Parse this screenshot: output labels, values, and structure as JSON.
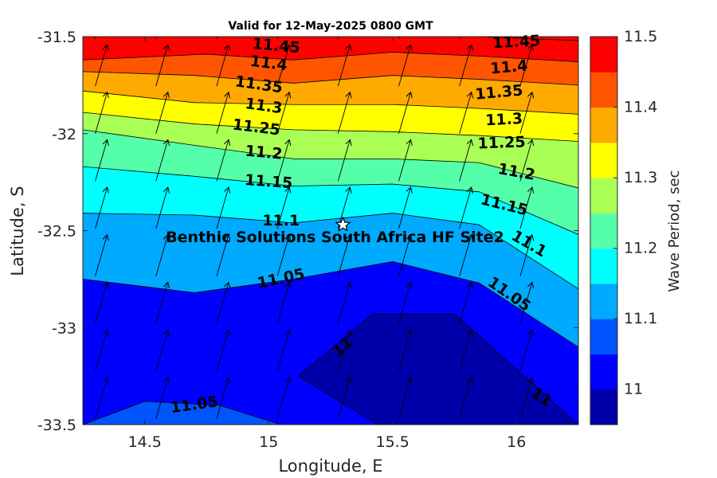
{
  "chart_data": {
    "type": "contourf",
    "title": "Valid for 12-May-2025 0800 GMT",
    "xlabel": "Longitude, E",
    "ylabel": "Latitude, S",
    "xlim": [
      14.25,
      16.25
    ],
    "ylim": [
      -33.5,
      -31.5
    ],
    "xticks": [
      14.5,
      15,
      15.5,
      16
    ],
    "yticks": [
      -31.5,
      -32,
      -32.5,
      -33,
      -33.5
    ],
    "colorbar": {
      "label": "Wave Period, sec",
      "range": [
        10.95,
        11.5
      ],
      "ticks": [
        "11",
        "11.1",
        "11.2",
        "11.3",
        "11.4",
        "11.5"
      ],
      "colors": [
        "#0000aa",
        "#0000ff",
        "#0055ff",
        "#00aaff",
        "#00ffff",
        "#55ffaa",
        "#aaff55",
        "#ffff00",
        "#ffaa00",
        "#ff5500",
        "#ff0000"
      ]
    },
    "contour_levels": [
      11,
      11.05,
      11.1,
      11.15,
      11.2,
      11.25,
      11.3,
      11.35,
      11.4,
      11.45
    ],
    "contour_labels": [
      {
        "text": "11.45",
        "lon": 15.03,
        "lat": -31.55,
        "angle": 5
      },
      {
        "text": "11.45",
        "lon": 16.0,
        "lat": -31.53,
        "angle": -3
      },
      {
        "text": "11.4",
        "lon": 15.0,
        "lat": -31.64,
        "angle": 7
      },
      {
        "text": "11.4",
        "lon": 15.97,
        "lat": -31.66,
        "angle": -5
      },
      {
        "text": "11.35",
        "lon": 14.96,
        "lat": -31.75,
        "angle": 8
      },
      {
        "text": "11.35",
        "lon": 15.93,
        "lat": -31.79,
        "angle": -5
      },
      {
        "text": "11.3",
        "lon": 14.98,
        "lat": -31.86,
        "angle": 8
      },
      {
        "text": "11.3",
        "lon": 15.95,
        "lat": -31.93,
        "angle": -3
      },
      {
        "text": "11.25",
        "lon": 14.95,
        "lat": -31.97,
        "angle": 7
      },
      {
        "text": "11.25",
        "lon": 15.94,
        "lat": -32.05,
        "angle": -2
      },
      {
        "text": "11.2",
        "lon": 14.98,
        "lat": -32.1,
        "angle": 5
      },
      {
        "text": "11.2",
        "lon": 16.0,
        "lat": -32.2,
        "angle": 10
      },
      {
        "text": "11.15",
        "lon": 15.0,
        "lat": -32.25,
        "angle": 4
      },
      {
        "text": "11.15",
        "lon": 15.95,
        "lat": -32.37,
        "angle": 14
      },
      {
        "text": "11.1",
        "lon": 15.05,
        "lat": -32.45,
        "angle": 0
      },
      {
        "text": "11.1",
        "lon": 16.05,
        "lat": -32.57,
        "angle": 30
      },
      {
        "text": "11.05",
        "lon": 15.05,
        "lat": -32.75,
        "angle": -12
      },
      {
        "text": "11.05",
        "lon": 15.97,
        "lat": -32.83,
        "angle": 35
      },
      {
        "text": "11.05",
        "lon": 14.7,
        "lat": -33.4,
        "angle": -8
      },
      {
        "text": "11",
        "lon": 15.3,
        "lat": -33.1,
        "angle": -40
      },
      {
        "text": "11",
        "lon": 16.1,
        "lat": -33.36,
        "angle": 35
      }
    ],
    "contour_lines": [
      {
        "level": 11.45,
        "points": [
          [
            14.25,
            -31.5
          ],
          [
            15.0,
            -31.5
          ],
          [
            15.5,
            -31.5
          ],
          [
            15.85,
            -31.5
          ],
          [
            16.25,
            -31.52
          ]
        ]
      },
      {
        "level": 11.4,
        "points": [
          [
            14.25,
            -31.62
          ],
          [
            14.75,
            -31.59
          ],
          [
            15.1,
            -31.62
          ],
          [
            15.5,
            -31.58
          ],
          [
            15.85,
            -31.6
          ],
          [
            16.25,
            -31.63
          ]
        ]
      },
      {
        "level": 11.35,
        "points": [
          [
            14.25,
            -31.68
          ],
          [
            14.7,
            -31.7
          ],
          [
            15.1,
            -31.74
          ],
          [
            15.5,
            -31.7
          ],
          [
            15.85,
            -31.72
          ],
          [
            16.25,
            -31.75
          ]
        ]
      },
      {
        "level": 11.3,
        "points": [
          [
            14.25,
            -31.78
          ],
          [
            14.7,
            -31.84
          ],
          [
            15.1,
            -31.85
          ],
          [
            15.5,
            -31.85
          ],
          [
            15.85,
            -31.87
          ],
          [
            16.25,
            -31.9
          ]
        ]
      },
      {
        "level": 11.25,
        "points": [
          [
            14.25,
            -31.89
          ],
          [
            14.7,
            -31.95
          ],
          [
            15.1,
            -31.98
          ],
          [
            15.5,
            -31.99
          ],
          [
            15.85,
            -32.01
          ],
          [
            16.25,
            -32.04
          ]
        ]
      },
      {
        "level": 11.2,
        "points": [
          [
            14.25,
            -31.98
          ],
          [
            14.7,
            -32.06
          ],
          [
            15.1,
            -32.13
          ],
          [
            15.5,
            -32.13
          ],
          [
            15.85,
            -32.15
          ],
          [
            16.25,
            -32.28
          ]
        ]
      },
      {
        "level": 11.15,
        "points": [
          [
            14.25,
            -32.17
          ],
          [
            14.7,
            -32.22
          ],
          [
            15.1,
            -32.27
          ],
          [
            15.5,
            -32.26
          ],
          [
            15.85,
            -32.3
          ],
          [
            16.25,
            -32.52
          ]
        ]
      },
      {
        "level": 11.1,
        "points": [
          [
            14.25,
            -32.41
          ],
          [
            14.7,
            -32.42
          ],
          [
            15.1,
            -32.46
          ],
          [
            15.5,
            -32.41
          ],
          [
            15.85,
            -32.47
          ],
          [
            16.25,
            -32.8
          ]
        ]
      },
      {
        "level": 11.05,
        "points": [
          [
            14.25,
            -32.75
          ],
          [
            14.7,
            -32.82
          ],
          [
            15.1,
            -32.75
          ],
          [
            15.5,
            -32.66
          ],
          [
            15.85,
            -32.77
          ],
          [
            16.25,
            -33.1
          ]
        ]
      },
      {
        "level": 11.0,
        "points": [
          [
            15.42,
            -32.93
          ],
          [
            15.75,
            -32.93
          ],
          [
            16.25,
            -33.5
          ],
          [
            15.44,
            -33.5
          ],
          [
            15.12,
            -33.25
          ],
          [
            15.42,
            -32.93
          ]
        ],
        "closed": true
      },
      {
        "level": 11.05,
        "points": [
          [
            14.25,
            -33.5
          ],
          [
            14.5,
            -33.38
          ],
          [
            14.8,
            -33.4
          ],
          [
            15.05,
            -33.5
          ]
        ],
        "closed": false
      }
    ],
    "site": {
      "name": "Benthic Solutions South Africa HF Site2",
      "lon": 15.3,
      "lat": -32.47,
      "marker": "white-star"
    },
    "vector_field": {
      "direction": "north-northeast",
      "color": "#000000"
    }
  }
}
